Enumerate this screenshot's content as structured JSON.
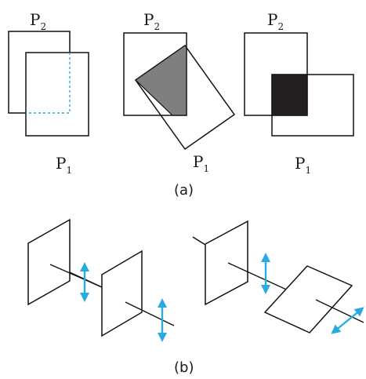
{
  "part_a": {
    "caption": "(a)",
    "panels": [
      {
        "top_label": {
          "main": "P",
          "sub": "2"
        },
        "bottom_label": {
          "main": "P",
          "sub": "1"
        }
      },
      {
        "top_label": {
          "main": "P",
          "sub": "2"
        },
        "bottom_label": {
          "main": "P",
          "sub": "1"
        }
      },
      {
        "top_label": {
          "main": "P",
          "sub": "2"
        },
        "bottom_label": {
          "main": "P",
          "sub": "1"
        }
      }
    ]
  },
  "part_b": {
    "caption": "(b)"
  },
  "colors": {
    "stroke": "#111111",
    "overlap_gray": "#7f7f7f",
    "overlap_black": "#231f20",
    "dashed_blue": "#29abe2",
    "arrow_blue": "#29abe2"
  }
}
